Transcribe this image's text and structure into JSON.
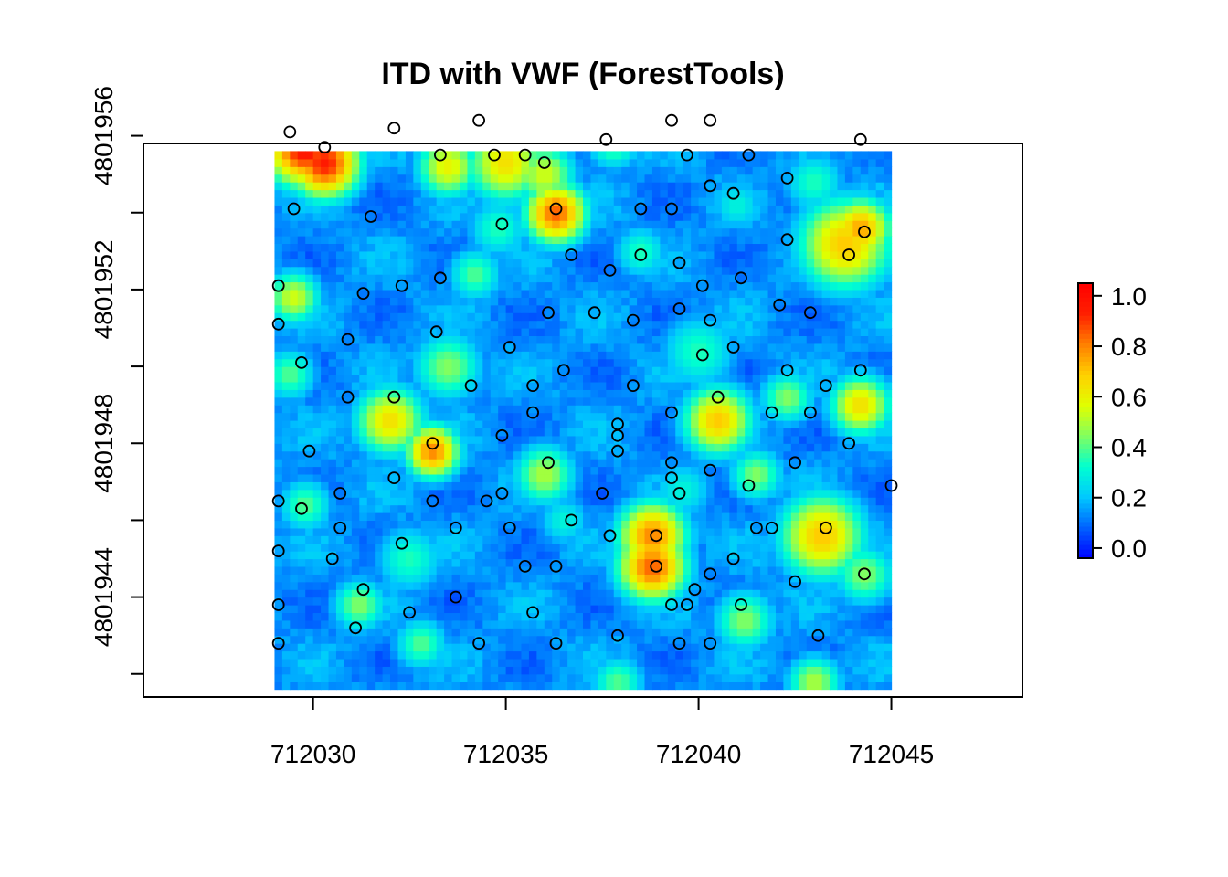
{
  "chart_data": {
    "type": "heatmap",
    "title": "ITD with VWF (ForestTools)",
    "xlabel": "",
    "ylabel": "",
    "xlim": [
      712025.6,
      712048.4
    ],
    "ylim": [
      4801941.4,
      4801955.8
    ],
    "raster_extent": {
      "x": [
        712029.0,
        712045.0
      ],
      "y": [
        4801941.6,
        4801955.6
      ]
    },
    "x_ticks": [
      712030,
      712035,
      712040,
      712045
    ],
    "x_tick_labels": [
      "712030",
      "712035",
      "712040",
      "712045"
    ],
    "y_ticks": [
      4801944,
      4801948,
      4801952,
      4801956
    ],
    "y_tick_labels": [
      "4801944",
      "4801948",
      "4801952",
      "4801956"
    ],
    "y_minor_ticks": [
      4801942,
      4801946,
      4801950,
      4801954
    ],
    "colorbar": {
      "range": [
        -0.04,
        1.05
      ],
      "ticks": [
        0.0,
        0.2,
        0.4,
        0.6,
        0.8,
        1.0
      ],
      "tick_labels": [
        "0.0",
        "0.2",
        "0.4",
        "0.6",
        "0.8",
        "1.0"
      ],
      "colors": [
        "#0000ff",
        "#0060ff",
        "#00c8ff",
        "#00ffd0",
        "#80ff60",
        "#e0ff00",
        "#ffd000",
        "#ff8000",
        "#ff2000",
        "#ff0000"
      ],
      "placement": "right"
    },
    "hotspots": [
      {
        "x": 712029.8,
        "y": 4801955.7,
        "value": 1.0,
        "r": 1.0
      },
      {
        "x": 712030.3,
        "y": 4801955.3,
        "value": 0.95,
        "r": 0.9
      },
      {
        "x": 712033.5,
        "y": 4801955.2,
        "value": 0.6,
        "r": 0.8
      },
      {
        "x": 712035.0,
        "y": 4801955.3,
        "value": 0.65,
        "r": 1.0
      },
      {
        "x": 712036.0,
        "y": 4801955.0,
        "value": 0.55,
        "r": 0.8
      },
      {
        "x": 712036.3,
        "y": 4801954.0,
        "value": 0.85,
        "r": 0.8
      },
      {
        "x": 712037.8,
        "y": 4801955.8,
        "value": 0.4,
        "r": 0.7
      },
      {
        "x": 712043.8,
        "y": 4801953.2,
        "value": 0.7,
        "r": 1.2
      },
      {
        "x": 712044.2,
        "y": 4801953.6,
        "value": 0.75,
        "r": 0.8
      },
      {
        "x": 712029.5,
        "y": 4801951.8,
        "value": 0.55,
        "r": 0.7
      },
      {
        "x": 712032.0,
        "y": 4801948.6,
        "value": 0.65,
        "r": 0.9
      },
      {
        "x": 712033.1,
        "y": 4801947.8,
        "value": 0.8,
        "r": 0.7
      },
      {
        "x": 712036.0,
        "y": 4801947.2,
        "value": 0.5,
        "r": 0.8
      },
      {
        "x": 712040.5,
        "y": 4801948.6,
        "value": 0.7,
        "r": 0.9
      },
      {
        "x": 712040.0,
        "y": 4801950.4,
        "value": 0.35,
        "r": 1.0
      },
      {
        "x": 712044.2,
        "y": 4801949.0,
        "value": 0.65,
        "r": 0.8
      },
      {
        "x": 712042.3,
        "y": 4801949.2,
        "value": 0.45,
        "r": 0.7
      },
      {
        "x": 712038.8,
        "y": 4801945.6,
        "value": 0.8,
        "r": 0.9
      },
      {
        "x": 712038.8,
        "y": 4801944.8,
        "value": 0.85,
        "r": 0.9
      },
      {
        "x": 712043.2,
        "y": 4801945.6,
        "value": 0.7,
        "r": 1.1
      },
      {
        "x": 712044.3,
        "y": 4801944.6,
        "value": 0.45,
        "r": 0.8
      },
      {
        "x": 712041.2,
        "y": 4801943.4,
        "value": 0.45,
        "r": 0.8
      },
      {
        "x": 712032.5,
        "y": 4801945.0,
        "value": 0.35,
        "r": 0.9
      },
      {
        "x": 712031.2,
        "y": 4801943.8,
        "value": 0.45,
        "r": 0.7
      },
      {
        "x": 712032.8,
        "y": 4801942.8,
        "value": 0.4,
        "r": 0.7
      },
      {
        "x": 712037.9,
        "y": 4801941.8,
        "value": 0.4,
        "r": 0.7
      },
      {
        "x": 712043.0,
        "y": 4801941.8,
        "value": 0.5,
        "r": 0.7
      },
      {
        "x": 712029.8,
        "y": 4801946.4,
        "value": 0.4,
        "r": 0.7
      },
      {
        "x": 712034.2,
        "y": 4801952.4,
        "value": 0.4,
        "r": 0.7
      },
      {
        "x": 712034.8,
        "y": 4801953.6,
        "value": 0.35,
        "r": 0.8
      },
      {
        "x": 712033.5,
        "y": 4801950.0,
        "value": 0.45,
        "r": 0.9
      },
      {
        "x": 712039.6,
        "y": 4801946.8,
        "value": 0.3,
        "r": 0.8
      },
      {
        "x": 712041.5,
        "y": 4801947.2,
        "value": 0.45,
        "r": 0.7
      },
      {
        "x": 712036.5,
        "y": 4801946.0,
        "value": 0.3,
        "r": 0.7
      },
      {
        "x": 712029.4,
        "y": 4801949.8,
        "value": 0.4,
        "r": 0.7
      },
      {
        "x": 712043.0,
        "y": 4801954.8,
        "value": 0.35,
        "r": 0.8
      },
      {
        "x": 712041.0,
        "y": 4801954.2,
        "value": 0.3,
        "r": 0.7
      },
      {
        "x": 712038.5,
        "y": 4801953.0,
        "value": 0.35,
        "r": 0.7
      }
    ],
    "tree_tops": [
      [
        712029.4,
        4801956.1
      ],
      [
        712030.3,
        4801955.7
      ],
      [
        712032.1,
        4801956.2
      ],
      [
        712034.3,
        4801956.4
      ],
      [
        712039.3,
        4801956.4
      ],
      [
        712040.3,
        4801956.4
      ],
      [
        712037.6,
        4801955.9
      ],
      [
        712044.2,
        4801955.9
      ],
      [
        712033.3,
        4801955.5
      ],
      [
        712034.7,
        4801955.5
      ],
      [
        712035.5,
        4801955.5
      ],
      [
        712036.0,
        4801955.3
      ],
      [
        712039.7,
        4801955.5
      ],
      [
        712041.3,
        4801955.5
      ],
      [
        712042.3,
        4801954.9
      ],
      [
        712040.3,
        4801954.7
      ],
      [
        712040.9,
        4801954.5
      ],
      [
        712029.5,
        4801954.1
      ],
      [
        712031.5,
        4801953.9
      ],
      [
        712036.3,
        4801954.1
      ],
      [
        712038.5,
        4801954.1
      ],
      [
        712039.3,
        4801954.1
      ],
      [
        712034.9,
        4801953.7
      ],
      [
        712042.3,
        4801953.3
      ],
      [
        712044.3,
        4801953.5
      ],
      [
        712043.9,
        4801952.9
      ],
      [
        712036.7,
        4801952.9
      ],
      [
        712038.5,
        4801952.9
      ],
      [
        712039.5,
        4801952.7
      ],
      [
        712037.7,
        4801952.5
      ],
      [
        712033.3,
        4801952.3
      ],
      [
        712041.1,
        4801952.3
      ],
      [
        712029.1,
        4801952.1
      ],
      [
        712032.3,
        4801952.1
      ],
      [
        712031.3,
        4801951.9
      ],
      [
        712040.1,
        4801952.1
      ],
      [
        712039.5,
        4801951.5
      ],
      [
        712042.1,
        4801951.6
      ],
      [
        712042.9,
        4801951.4
      ],
      [
        712036.1,
        4801951.4
      ],
      [
        712037.3,
        4801951.4
      ],
      [
        712038.3,
        4801951.2
      ],
      [
        712040.3,
        4801951.2
      ],
      [
        712029.1,
        4801951.1
      ],
      [
        712033.2,
        4801950.9
      ],
      [
        712030.9,
        4801950.7
      ],
      [
        712035.1,
        4801950.5
      ],
      [
        712040.9,
        4801950.5
      ],
      [
        712040.1,
        4801950.3
      ],
      [
        712029.7,
        4801950.1
      ],
      [
        712036.5,
        4801949.9
      ],
      [
        712042.3,
        4801949.9
      ],
      [
        712044.2,
        4801949.9
      ],
      [
        712034.1,
        4801949.5
      ],
      [
        712035.7,
        4801949.5
      ],
      [
        712038.3,
        4801949.5
      ],
      [
        712043.3,
        4801949.5
      ],
      [
        712030.9,
        4801949.2
      ],
      [
        712032.1,
        4801949.2
      ],
      [
        712040.5,
        4801949.2
      ],
      [
        712035.7,
        4801948.8
      ],
      [
        712039.3,
        4801948.8
      ],
      [
        712041.9,
        4801948.8
      ],
      [
        712042.9,
        4801948.8
      ],
      [
        712037.9,
        4801948.5
      ],
      [
        712037.9,
        4801948.2
      ],
      [
        712034.9,
        4801948.2
      ],
      [
        712033.1,
        4801948.0
      ],
      [
        712043.9,
        4801948.0
      ],
      [
        712029.9,
        4801947.8
      ],
      [
        712037.9,
        4801947.8
      ],
      [
        712036.1,
        4801947.5
      ],
      [
        712039.3,
        4801947.5
      ],
      [
        712042.5,
        4801947.5
      ],
      [
        712032.1,
        4801947.1
      ],
      [
        712039.3,
        4801947.1
      ],
      [
        712040.3,
        4801947.3
      ],
      [
        712041.3,
        4801946.9
      ],
      [
        712045.0,
        4801946.9
      ],
      [
        712030.7,
        4801946.7
      ],
      [
        712034.9,
        4801946.7
      ],
      [
        712037.5,
        4801946.7
      ],
      [
        712039.5,
        4801946.7
      ],
      [
        712033.1,
        4801946.5
      ],
      [
        712034.5,
        4801946.5
      ],
      [
        712029.1,
        4801946.5
      ],
      [
        712029.7,
        4801946.3
      ],
      [
        712036.7,
        4801946.0
      ],
      [
        712030.7,
        4801945.8
      ],
      [
        712033.7,
        4801945.8
      ],
      [
        712035.1,
        4801945.8
      ],
      [
        712041.5,
        4801945.8
      ],
      [
        712041.9,
        4801945.8
      ],
      [
        712043.3,
        4801945.8
      ],
      [
        712032.3,
        4801945.4
      ],
      [
        712037.7,
        4801945.6
      ],
      [
        712038.9,
        4801945.6
      ],
      [
        712029.1,
        4801945.2
      ],
      [
        712030.5,
        4801945.0
      ],
      [
        712040.9,
        4801945.0
      ],
      [
        712035.5,
        4801944.8
      ],
      [
        712036.3,
        4801944.8
      ],
      [
        712038.9,
        4801944.8
      ],
      [
        712040.3,
        4801944.6
      ],
      [
        712044.3,
        4801944.6
      ],
      [
        712042.5,
        4801944.4
      ],
      [
        712031.3,
        4801944.2
      ],
      [
        712039.9,
        4801944.2
      ],
      [
        712033.7,
        4801944.0
      ],
      [
        712029.1,
        4801943.8
      ],
      [
        712039.3,
        4801943.8
      ],
      [
        712039.7,
        4801943.8
      ],
      [
        712041.1,
        4801943.8
      ],
      [
        712032.5,
        4801943.6
      ],
      [
        712035.7,
        4801943.6
      ],
      [
        712031.1,
        4801943.2
      ],
      [
        712037.9,
        4801943.0
      ],
      [
        712043.1,
        4801943.0
      ],
      [
        712029.1,
        4801942.8
      ],
      [
        712034.3,
        4801942.8
      ],
      [
        712036.3,
        4801942.8
      ],
      [
        712039.5,
        4801942.8
      ],
      [
        712040.3,
        4801942.8
      ]
    ]
  }
}
